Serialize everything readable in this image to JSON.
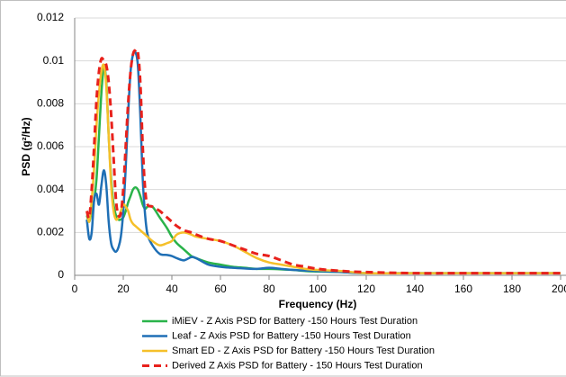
{
  "chart_data": {
    "type": "line",
    "xlabel": "Frequency (Hz)",
    "ylabel": "PSD (g²/Hz)",
    "x": [
      5,
      6,
      7,
      8,
      9,
      10,
      11,
      12,
      13,
      14,
      15,
      16,
      17,
      18,
      19,
      20,
      21,
      22,
      23,
      24,
      25,
      26,
      27,
      28,
      29,
      30,
      32,
      35,
      38,
      40,
      42,
      45,
      48,
      50,
      55,
      60,
      65,
      70,
      75,
      80,
      85,
      90,
      95,
      100,
      110,
      120,
      140,
      160,
      180,
      200
    ],
    "xlim": [
      0,
      200
    ],
    "xticks": [
      0,
      20,
      40,
      60,
      80,
      100,
      120,
      140,
      160,
      180,
      200
    ],
    "ylim": [
      0,
      0.012
    ],
    "yticks": [
      0,
      0.002,
      0.004,
      0.006,
      0.008,
      0.01,
      0.012
    ],
    "grid": true,
    "legend": "bottom",
    "series": [
      {
        "name": "iMiEV - Z Axis PSD for Battery -150 Hours Test Duration",
        "color": "#2ab34a",
        "dash": false,
        "values": [
          0.0028,
          0.0025,
          0.003,
          0.0035,
          0.0045,
          0.0065,
          0.0085,
          0.0097,
          0.009,
          0.0065,
          0.0045,
          0.0033,
          0.0028,
          0.0026,
          0.0026,
          0.0027,
          0.003,
          0.0034,
          0.0037,
          0.004,
          0.0041,
          0.004,
          0.0037,
          0.0033,
          0.0031,
          0.0032,
          0.0032,
          0.0027,
          0.0022,
          0.0018,
          0.0015,
          0.0012,
          0.0009,
          0.0008,
          0.0006,
          0.0005,
          0.0004,
          0.00035,
          0.0003,
          0.0003,
          0.00028,
          0.00025,
          0.0002,
          0.00018,
          0.00015,
          0.0001,
          0.0001,
          0.0001,
          0.0001,
          0.0001
        ]
      },
      {
        "name": "Leaf - Z Axis PSD for Battery -150 Hours Test Duration",
        "color": "#1f6fb5",
        "dash": false,
        "values": [
          0.0026,
          0.0017,
          0.002,
          0.0035,
          0.0038,
          0.0033,
          0.0042,
          0.0049,
          0.0042,
          0.0025,
          0.0015,
          0.0012,
          0.0011,
          0.0013,
          0.0018,
          0.003,
          0.005,
          0.0075,
          0.0095,
          0.0103,
          0.0104,
          0.0098,
          0.0075,
          0.0045,
          0.0028,
          0.0019,
          0.0014,
          0.001,
          0.00095,
          0.0009,
          0.0008,
          0.0007,
          0.00085,
          0.0008,
          0.0005,
          0.0004,
          0.00035,
          0.00032,
          0.0003,
          0.00035,
          0.0003,
          0.00025,
          0.00022,
          0.0002,
          0.00015,
          0.0001,
          0.0001,
          0.0001,
          0.0001,
          0.0001
        ]
      },
      {
        "name": "Smart ED - Z Axis PSD for Battery -150 Hours Test Duration",
        "color": "#f5c02a",
        "dash": false,
        "values": [
          0.003,
          0.0025,
          0.0035,
          0.005,
          0.007,
          0.0085,
          0.0095,
          0.0098,
          0.0088,
          0.0065,
          0.0042,
          0.003,
          0.0026,
          0.0027,
          0.003,
          0.0033,
          0.0032,
          0.003,
          0.0026,
          0.0024,
          0.0023,
          0.0022,
          0.0021,
          0.002,
          0.0019,
          0.0018,
          0.0016,
          0.0014,
          0.0015,
          0.0016,
          0.0019,
          0.002,
          0.0019,
          0.0018,
          0.0017,
          0.0016,
          0.0014,
          0.0011,
          0.0008,
          0.0006,
          0.0005,
          0.0004,
          0.0003,
          0.00025,
          0.0002,
          0.0001,
          0.0001,
          0.0001,
          0.0001,
          0.0001
        ]
      },
      {
        "name": "Derived Z Axis PSD for Battery - 150 Hours Test Duration",
        "color": "#e8211c",
        "dash": true,
        "values": [
          0.003,
          0.0027,
          0.004,
          0.006,
          0.0082,
          0.0095,
          0.0101,
          0.01,
          0.0098,
          0.009,
          0.0075,
          0.0055,
          0.0035,
          0.0028,
          0.0029,
          0.004,
          0.006,
          0.008,
          0.0095,
          0.0103,
          0.0105,
          0.0104,
          0.009,
          0.006,
          0.004,
          0.0033,
          0.0032,
          0.003,
          0.0027,
          0.0025,
          0.0023,
          0.0021,
          0.002,
          0.0019,
          0.0017,
          0.0016,
          0.0014,
          0.0012,
          0.001,
          0.0009,
          0.0007,
          0.0005,
          0.0004,
          0.0003,
          0.0002,
          0.00015,
          0.0001,
          0.0001,
          0.0001,
          0.0001
        ]
      }
    ]
  }
}
